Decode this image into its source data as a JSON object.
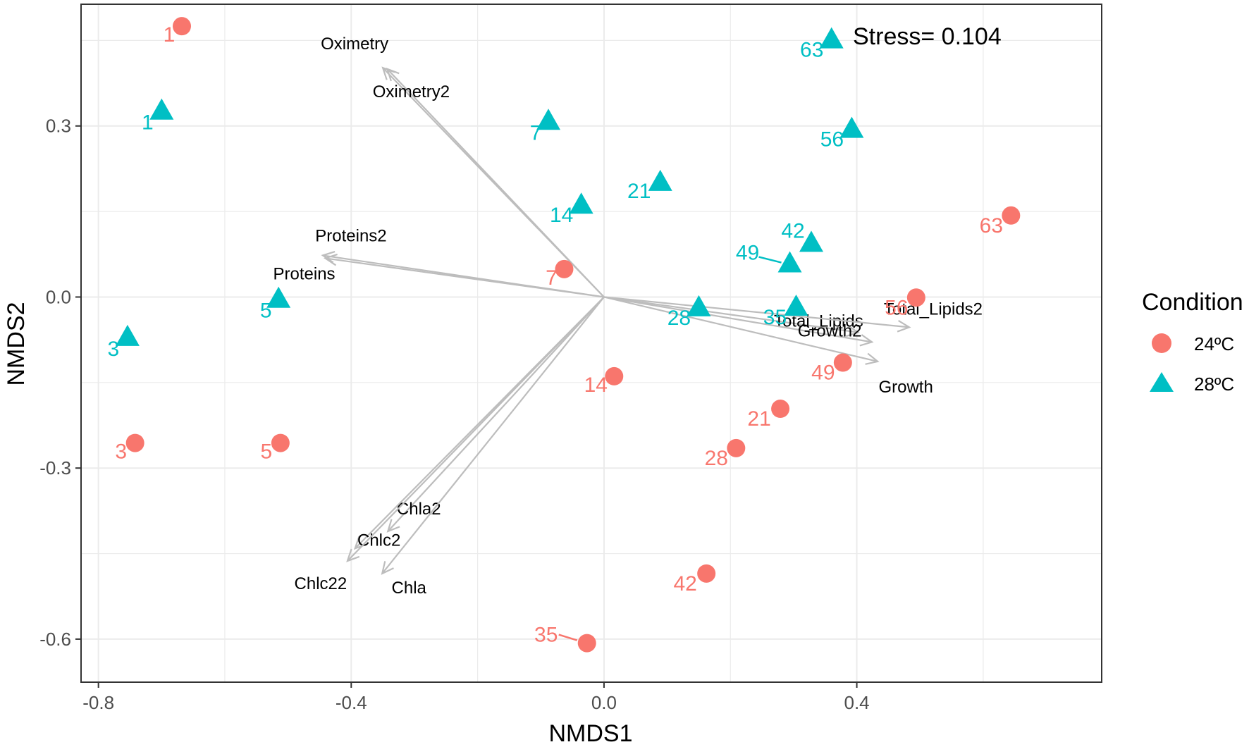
{
  "chart_data": {
    "type": "scatter",
    "title": "",
    "annotation": "Stress= 0.104",
    "xlabel": "NMDS1",
    "ylabel": "NMDS2",
    "xlim": [
      -0.8275,
      0.7875
    ],
    "ylim": [
      -0.6755,
      0.5135
    ],
    "xticks": [
      -0.8,
      -0.4,
      0.0,
      0.4
    ],
    "xtick_labels": [
      "-0.8",
      "-0.4",
      "0.0",
      "0.4"
    ],
    "yticks": [
      0.3,
      0.0,
      -0.3,
      -0.6
    ],
    "ytick_labels": [
      "0.3",
      "0.0",
      "-0.3",
      "-0.6"
    ],
    "grid": true,
    "legend": {
      "title": "Condition",
      "position": "right",
      "entries": [
        {
          "label": "24ºC",
          "color": "#F8766D",
          "shape": "circle"
        },
        {
          "label": "28ºC",
          "color": "#00BFC4",
          "shape": "triangle"
        }
      ]
    },
    "series": [
      {
        "name": "24ºC",
        "color": "#F8766D",
        "shape": "circle",
        "points": [
          {
            "label": "1",
            "x": -0.668,
            "y": 0.475
          },
          {
            "label": "3",
            "x": -0.742,
            "y": -0.256
          },
          {
            "label": "5",
            "x": -0.512,
            "y": -0.256
          },
          {
            "label": "7",
            "x": -0.063,
            "y": 0.049
          },
          {
            "label": "14",
            "x": 0.016,
            "y": -0.139
          },
          {
            "label": "21",
            "x": 0.279,
            "y": -0.196
          },
          {
            "label": "28",
            "x": 0.209,
            "y": -0.265
          },
          {
            "label": "35",
            "x": -0.027,
            "y": -0.607
          },
          {
            "label": "42",
            "x": 0.162,
            "y": -0.485
          },
          {
            "label": "49",
            "x": 0.378,
            "y": -0.115
          },
          {
            "label": "56",
            "x": 0.494,
            "y": -0.001
          },
          {
            "label": "63",
            "x": 0.644,
            "y": 0.143
          }
        ]
      },
      {
        "name": "28ºC",
        "color": "#00BFC4",
        "shape": "triangle",
        "points": [
          {
            "label": "1",
            "x": -0.7,
            "y": 0.326
          },
          {
            "label": "3",
            "x": -0.754,
            "y": -0.071
          },
          {
            "label": "5",
            "x": -0.515,
            "y": -0.004
          },
          {
            "label": "7",
            "x": -0.088,
            "y": 0.308
          },
          {
            "label": "14",
            "x": -0.036,
            "y": 0.161
          },
          {
            "label": "21",
            "x": 0.089,
            "y": 0.201
          },
          {
            "label": "28",
            "x": 0.15,
            "y": -0.019
          },
          {
            "label": "35",
            "x": 0.304,
            "y": -0.018
          },
          {
            "label": "42",
            "x": 0.328,
            "y": 0.094
          },
          {
            "label": "49",
            "x": 0.294,
            "y": 0.058
          },
          {
            "label": "56",
            "x": 0.392,
            "y": 0.294
          },
          {
            "label": "63",
            "x": 0.36,
            "y": 0.451
          }
        ]
      }
    ],
    "vectors": [
      {
        "label": "Oximetry",
        "x": -0.35,
        "y": 0.402
      },
      {
        "label": "Oximetry2",
        "x": -0.343,
        "y": 0.4
      },
      {
        "label": "Proteins2",
        "x": -0.445,
        "y": 0.073
      },
      {
        "label": "Proteins",
        "x": -0.441,
        "y": 0.068
      },
      {
        "label": "Total_Lipids",
        "x": 0.402,
        "y": -0.062
      },
      {
        "label": "Total_Lipids2",
        "x": 0.483,
        "y": -0.053
      },
      {
        "label": "Growth2",
        "x": 0.424,
        "y": -0.079
      },
      {
        "label": "Growth",
        "x": 0.433,
        "y": -0.113
      },
      {
        "label": "Chla2",
        "x": -0.342,
        "y": -0.411
      },
      {
        "label": "Chlc2",
        "x": -0.394,
        "y": -0.441
      },
      {
        "label": "Chlc22",
        "x": -0.406,
        "y": -0.463
      },
      {
        "label": "Chla",
        "x": -0.351,
        "y": -0.485
      }
    ]
  }
}
